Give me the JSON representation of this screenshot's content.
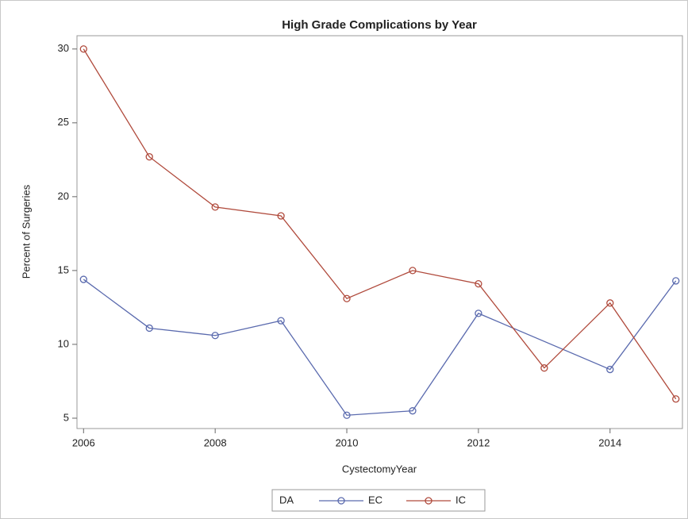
{
  "chart_data": {
    "type": "line",
    "title": "High Grade Complications by Year",
    "x_label": "CystectomyYear",
    "y_label": "Percent of Surgeries",
    "legend_title": "DA",
    "legend_position": "bottom",
    "series": [
      {
        "name": "EC",
        "color": "#5a6aae",
        "x": [
          2006,
          2007,
          2008,
          2009,
          2010,
          2011,
          2012,
          2014,
          2015
        ],
        "values": [
          14.4,
          11.1,
          10.6,
          11.6,
          5.2,
          5.5,
          12.1,
          8.3,
          14.3
        ]
      },
      {
        "name": "IC",
        "color": "#b04a3c",
        "x": [
          2006,
          2007,
          2008,
          2009,
          2010,
          2011,
          2012,
          2013,
          2014,
          2015
        ],
        "values": [
          30.0,
          22.7,
          19.3,
          18.7,
          13.1,
          15.0,
          14.1,
          8.4,
          12.8,
          6.3
        ]
      }
    ],
    "xlim": [
      2005.9,
      2015.1
    ],
    "xticks": [
      2006,
      2008,
      2010,
      2012,
      2014
    ],
    "ylim": [
      4.3,
      30.9
    ],
    "yticks": [
      5,
      10,
      15,
      20,
      25,
      30
    ]
  }
}
